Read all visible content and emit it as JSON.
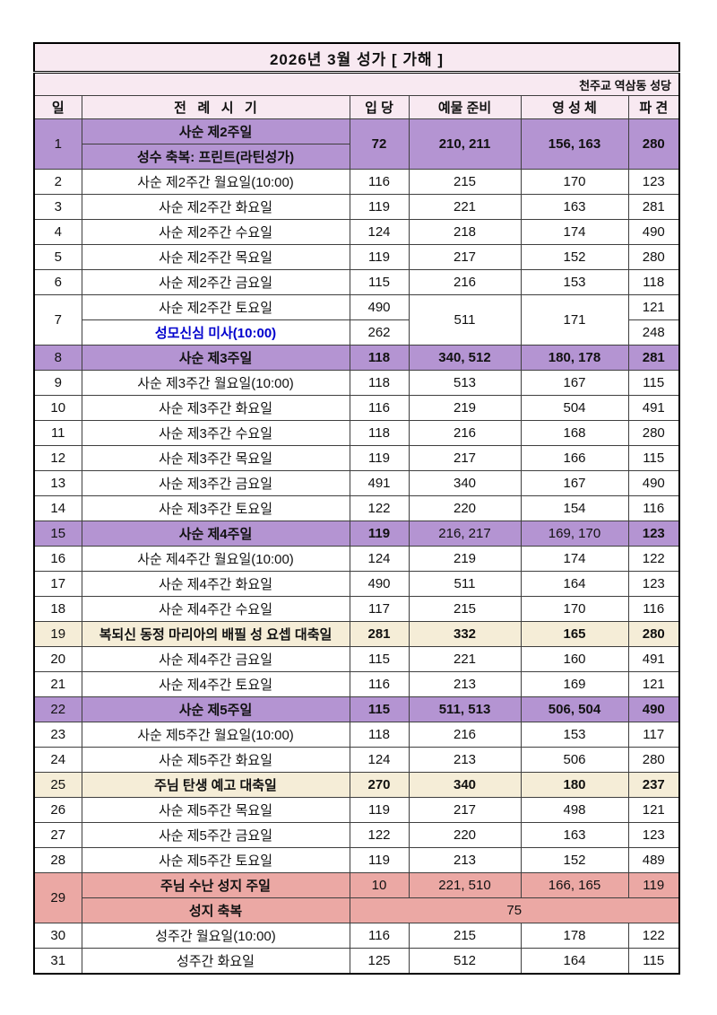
{
  "colors": {
    "purple": "#b494d2",
    "cream": "#f5edd7",
    "pink": "#eba8a4",
    "header_bg": "#f8e9f1",
    "blue": "#0000cd"
  },
  "header": {
    "title": "2026년 3월 성가  [ 가해 ]",
    "church": "천주교 역삼동 성당"
  },
  "table": {
    "headers": [
      "일",
      "전   례   시   기",
      "입 당",
      "예물 준비",
      "영 성 체",
      "파 견"
    ],
    "rows": [
      {
        "day": "1",
        "bg": "purple",
        "type": "double-season",
        "season_bold": true,
        "seasons": [
          "사순 제2주일",
          "성수 축복: 프린트(라틴성가)"
        ],
        "values": [
          "72",
          "210, 211",
          "156, 163",
          "280"
        ]
      },
      {
        "day": "2",
        "bg": "white",
        "season": "사순 제2주간 월요일(10:00)",
        "values": [
          "116",
          "215",
          "170",
          "123"
        ]
      },
      {
        "day": "3",
        "bg": "white",
        "season": "사순 제2주간 화요일",
        "values": [
          "119",
          "221",
          "163",
          "281"
        ]
      },
      {
        "day": "4",
        "bg": "white",
        "season": "사순 제2주간 수요일",
        "values": [
          "124",
          "218",
          "174",
          "490"
        ]
      },
      {
        "day": "5",
        "bg": "white",
        "season": "사순 제2주간 목요일",
        "values": [
          "119",
          "217",
          "152",
          "280"
        ]
      },
      {
        "day": "6",
        "bg": "white",
        "season": "사순 제2주간 금요일",
        "values": [
          "115",
          "216",
          "153",
          "118"
        ]
      },
      {
        "day": "7",
        "bg": "white",
        "type": "split-mass",
        "lines": [
          {
            "season": "사순 제2주간 토요일",
            "entrance": "490",
            "dismissal": "121",
            "blue": false
          },
          {
            "season": "성모신심 미사(10:00)",
            "entrance": "262",
            "dismissal": "248",
            "blue": true
          }
        ],
        "offertory": "511",
        "communion": "171"
      },
      {
        "day": "8",
        "bg": "purple",
        "season": "사순 제3주일",
        "season_bold": true,
        "values": [
          "118",
          "340, 512",
          "180, 178",
          "281"
        ],
        "values_bold": [
          true,
          true,
          true,
          true
        ]
      },
      {
        "day": "9",
        "bg": "white",
        "season": "사순 제3주간 월요일(10:00)",
        "values": [
          "118",
          "513",
          "167",
          "115"
        ]
      },
      {
        "day": "10",
        "bg": "white",
        "season": "사순 제3주간 화요일",
        "values": [
          "116",
          "219",
          "504",
          "491"
        ]
      },
      {
        "day": "11",
        "bg": "white",
        "season": "사순 제3주간 수요일",
        "values": [
          "118",
          "216",
          "168",
          "280"
        ]
      },
      {
        "day": "12",
        "bg": "white",
        "season": "사순 제3주간 목요일",
        "values": [
          "119",
          "217",
          "166",
          "115"
        ]
      },
      {
        "day": "13",
        "bg": "white",
        "season": "사순 제3주간 금요일",
        "values": [
          "491",
          "340",
          "167",
          "490"
        ]
      },
      {
        "day": "14",
        "bg": "white",
        "season": "사순 제3주간 토요일",
        "values": [
          "122",
          "220",
          "154",
          "116"
        ]
      },
      {
        "day": "15",
        "bg": "purple",
        "season": "사순 제4주일",
        "season_bold": true,
        "values": [
          "119",
          "216, 217",
          "169, 170",
          "123"
        ],
        "values_bold": [
          true,
          false,
          false,
          true
        ]
      },
      {
        "day": "16",
        "bg": "white",
        "season": "사순 제4주간 월요일(10:00)",
        "values": [
          "124",
          "219",
          "174",
          "122"
        ]
      },
      {
        "day": "17",
        "bg": "white",
        "season": "사순 제4주간 화요일",
        "values": [
          "490",
          "511",
          "164",
          "123"
        ]
      },
      {
        "day": "18",
        "bg": "white",
        "season": "사순 제4주간 수요일",
        "values": [
          "117",
          "215",
          "170",
          "116"
        ]
      },
      {
        "day": "19",
        "bg": "cream",
        "season": "복되신 동정 마리아의 배필 성 요셉 대축일",
        "season_bold": true,
        "values": [
          "281",
          "332",
          "165",
          "280"
        ],
        "values_bold": [
          true,
          true,
          true,
          true
        ]
      },
      {
        "day": "20",
        "bg": "white",
        "season": "사순 제4주간 금요일",
        "values": [
          "115",
          "221",
          "160",
          "491"
        ]
      },
      {
        "day": "21",
        "bg": "white",
        "season": "사순 제4주간 토요일",
        "values": [
          "116",
          "213",
          "169",
          "121"
        ]
      },
      {
        "day": "22",
        "bg": "purple",
        "season": "사순 제5주일",
        "season_bold": true,
        "values": [
          "115",
          "511, 513",
          "506, 504",
          "490"
        ],
        "values_bold": [
          true,
          true,
          true,
          true
        ]
      },
      {
        "day": "23",
        "bg": "white",
        "season": "사순 제5주간 월요일(10:00)",
        "values": [
          "118",
          "216",
          "153",
          "117"
        ]
      },
      {
        "day": "24",
        "bg": "white",
        "season": "사순 제5주간 화요일",
        "values": [
          "124",
          "213",
          "506",
          "280"
        ]
      },
      {
        "day": "25",
        "bg": "cream",
        "season": "주님 탄생 예고 대축일",
        "season_bold": true,
        "values": [
          "270",
          "340",
          "180",
          "237"
        ],
        "values_bold": [
          true,
          true,
          true,
          true
        ]
      },
      {
        "day": "26",
        "bg": "white",
        "season": "사순 제5주간 목요일",
        "values": [
          "119",
          "217",
          "498",
          "121"
        ]
      },
      {
        "day": "27",
        "bg": "white",
        "season": "사순 제5주간 금요일",
        "values": [
          "122",
          "220",
          "163",
          "123"
        ]
      },
      {
        "day": "28",
        "bg": "white",
        "season": "사순 제5주간 토요일",
        "values": [
          "119",
          "213",
          "152",
          "489"
        ]
      },
      {
        "day": "29",
        "bg": "pink",
        "type": "split-palm",
        "season_bold": true,
        "lines": [
          {
            "season": "주님 수난 성지 주일",
            "values": [
              "10",
              "221, 510",
              "166, 165",
              "119"
            ]
          },
          {
            "season": "성지 축복",
            "merged": "75"
          }
        ]
      },
      {
        "day": "30",
        "bg": "white",
        "season": "성주간 월요일(10:00)",
        "values": [
          "116",
          "215",
          "178",
          "122"
        ]
      },
      {
        "day": "31",
        "bg": "white",
        "season": "성주간 화요일",
        "values": [
          "125",
          "512",
          "164",
          "115"
        ]
      }
    ]
  }
}
